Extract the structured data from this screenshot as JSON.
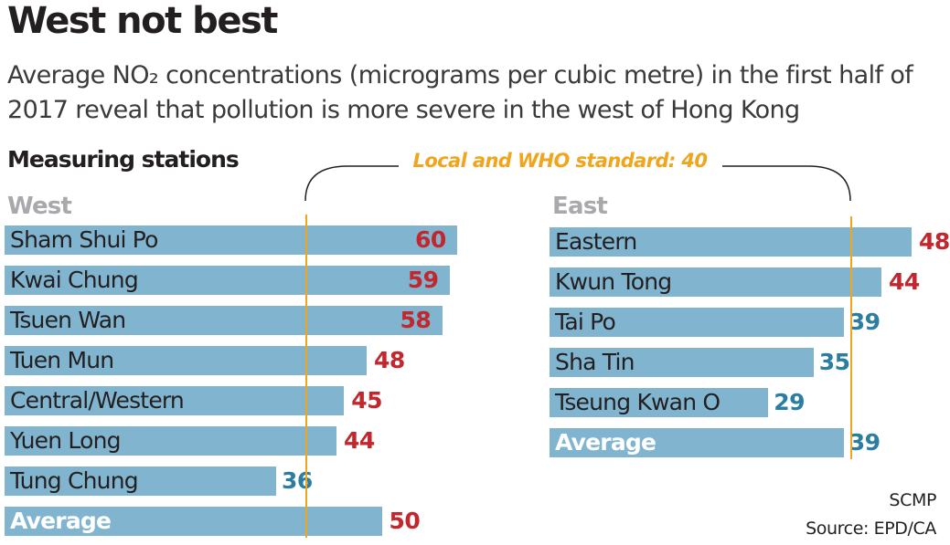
{
  "title": "West not best",
  "subtitle": "Average NO₂ concentrations (micrograms per cubic metre) in the first half of 2017 reveal that pollution is more severe in the west of Hong Kong",
  "stations_label": "Measuring stations",
  "standard_label": "Local and WHO standard: 40",
  "credit": "SCMP",
  "source": "Source: EPD/CA",
  "colors": {
    "bar": "#81b5cf",
    "above_standard": "#c1272d",
    "below_standard": "#2b7ea1",
    "standard_line": "#f0a51d"
  },
  "chart_data": [
    {
      "type": "bar",
      "title": "West",
      "orientation": "horizontal",
      "reference_line": {
        "value": 40,
        "label": "Local and WHO standard: 40"
      },
      "categories": [
        "Sham Shui Po",
        "Kwai Chung",
        "Tsuen Wan",
        "Tuen Mun",
        "Central/Western",
        "Yuen Long",
        "Tung Chung",
        "Average"
      ],
      "values": [
        60,
        59,
        58,
        48,
        45,
        44,
        36,
        50
      ],
      "value_labels": [
        "60",
        "59",
        "58",
        "48",
        "45",
        "44",
        "36",
        "50"
      ]
    },
    {
      "type": "bar",
      "title": "East",
      "orientation": "horizontal",
      "reference_line": {
        "value": 40,
        "label": "Local and WHO standard: 40"
      },
      "categories": [
        "Eastern",
        "Kwun Tong",
        "Tai Po",
        "Sha Tin",
        "Tseung Kwan O",
        "Average"
      ],
      "values": [
        48,
        44,
        39,
        35,
        29,
        39
      ],
      "value_labels": [
        "48",
        "44",
        "39",
        "35",
        "29",
        "39"
      ]
    }
  ]
}
